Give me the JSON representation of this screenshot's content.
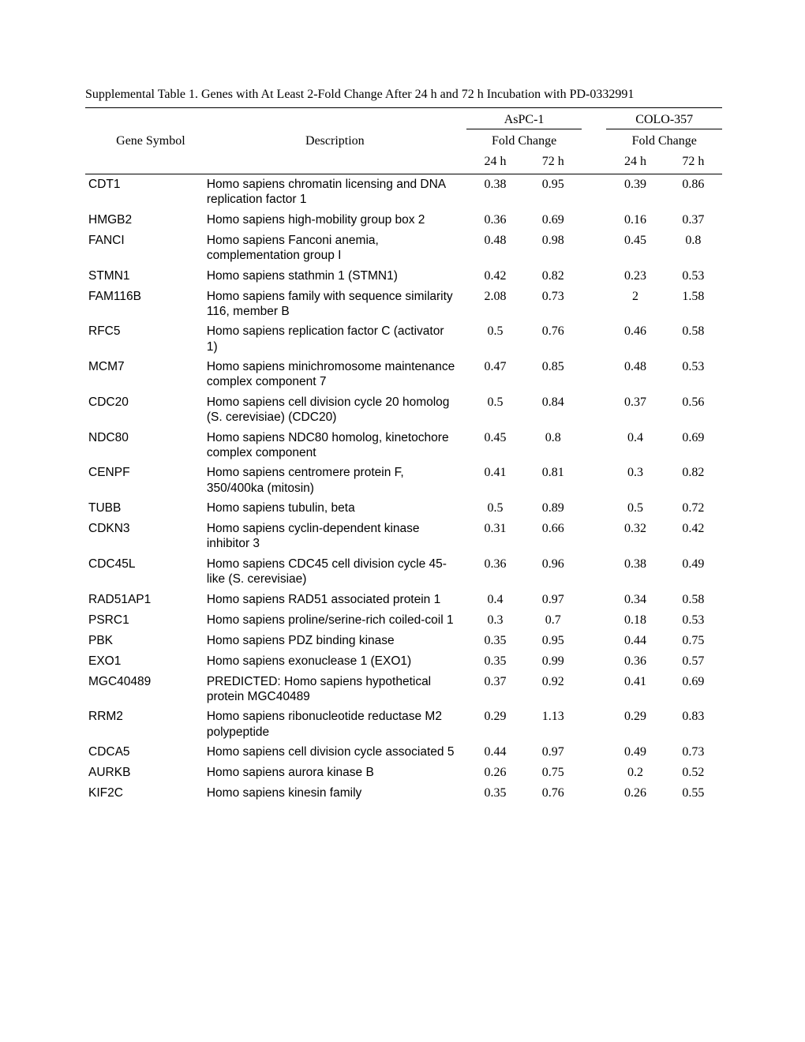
{
  "title": "Supplemental Table 1. Genes with At Least 2-Fold Change After 24 h and 72 h Incubation with PD-0332991",
  "headers": {
    "geneSymbol": "Gene Symbol",
    "description": "Description",
    "group1": "AsPC-1",
    "group2": "COLO-357",
    "foldChange": "Fold Change",
    "t24": "24 h",
    "t72": "72 h"
  },
  "rows": [
    {
      "gene": "CDT1",
      "desc": "Homo sapiens chromatin licensing and DNA replication factor 1",
      "a24": "0.38",
      "a72": "0.95",
      "c24": "0.39",
      "c72": "0.86"
    },
    {
      "gene": "HMGB2",
      "desc": "Homo sapiens high-mobility group box 2",
      "a24": "0.36",
      "a72": "0.69",
      "c24": "0.16",
      "c72": "0.37"
    },
    {
      "gene": "FANCI",
      "desc": "Homo sapiens Fanconi anemia, complementation group I",
      "a24": "0.48",
      "a72": "0.98",
      "c24": "0.45",
      "c72": "0.8"
    },
    {
      "gene": "STMN1",
      "desc": "Homo sapiens stathmin 1 (STMN1)",
      "a24": "0.42",
      "a72": "0.82",
      "c24": "0.23",
      "c72": "0.53"
    },
    {
      "gene": "FAM116B",
      "desc": "Homo sapiens family with sequence similarity 116, member B",
      "a24": "2.08",
      "a72": "0.73",
      "c24": "2",
      "c72": "1.58"
    },
    {
      "gene": "RFC5",
      "desc": "Homo sapiens replication factor C (activator 1)",
      "a24": "0.5",
      "a72": "0.76",
      "c24": "0.46",
      "c72": "0.58"
    },
    {
      "gene": "MCM7",
      "desc": "Homo sapiens minichromosome maintenance complex component 7",
      "a24": "0.47",
      "a72": "0.85",
      "c24": "0.48",
      "c72": "0.53"
    },
    {
      "gene": "CDC20",
      "desc": "Homo sapiens cell division cycle 20 homolog (S. cerevisiae) (CDC20)",
      "a24": "0.5",
      "a72": "0.84",
      "c24": "0.37",
      "c72": "0.56"
    },
    {
      "gene": "NDC80",
      "desc": "Homo sapiens NDC80 homolog, kinetochore complex component",
      "a24": "0.45",
      "a72": "0.8",
      "c24": "0.4",
      "c72": "0.69"
    },
    {
      "gene": "CENPF",
      "desc": "Homo sapiens centromere protein F, 350/400ka (mitosin)",
      "a24": "0.41",
      "a72": "0.81",
      "c24": "0.3",
      "c72": "0.82"
    },
    {
      "gene": "TUBB",
      "desc": "Homo sapiens tubulin, beta",
      "a24": "0.5",
      "a72": "0.89",
      "c24": "0.5",
      "c72": "0.72"
    },
    {
      "gene": "CDKN3",
      "desc": "Homo sapiens cyclin-dependent kinase inhibitor 3",
      "a24": "0.31",
      "a72": "0.66",
      "c24": "0.32",
      "c72": "0.42"
    },
    {
      "gene": "CDC45L",
      "desc": "Homo sapiens CDC45 cell division cycle 45-like (S. cerevisiae)",
      "a24": "0.36",
      "a72": "0.96",
      "c24": "0.38",
      "c72": "0.49"
    },
    {
      "gene": "RAD51AP1",
      "desc": "Homo sapiens RAD51 associated protein 1",
      "a24": "0.4",
      "a72": "0.97",
      "c24": "0.34",
      "c72": "0.58"
    },
    {
      "gene": "PSRC1",
      "desc": "Homo sapiens proline/serine-rich coiled-coil 1",
      "a24": "0.3",
      "a72": "0.7",
      "c24": "0.18",
      "c72": "0.53"
    },
    {
      "gene": "PBK",
      "desc": "Homo sapiens PDZ binding kinase",
      "a24": "0.35",
      "a72": "0.95",
      "c24": "0.44",
      "c72": "0.75"
    },
    {
      "gene": "EXO1",
      "desc": "Homo sapiens exonuclease 1 (EXO1)",
      "a24": "0.35",
      "a72": "0.99",
      "c24": "0.36",
      "c72": "0.57"
    },
    {
      "gene": "MGC40489",
      "desc": "PREDICTED: Homo sapiens hypothetical protein MGC40489",
      "a24": "0.37",
      "a72": "0.92",
      "c24": "0.41",
      "c72": "0.69"
    },
    {
      "gene": "RRM2",
      "desc": "Homo sapiens ribonucleotide reductase M2 polypeptide",
      "a24": "0.29",
      "a72": "1.13",
      "c24": "0.29",
      "c72": "0.83"
    },
    {
      "gene": "CDCA5",
      "desc": "Homo sapiens cell division cycle associated 5",
      "a24": "0.44",
      "a72": "0.97",
      "c24": "0.49",
      "c72": "0.73"
    },
    {
      "gene": "AURKB",
      "desc": "Homo sapiens aurora kinase B",
      "a24": "0.26",
      "a72": "0.75",
      "c24": "0.2",
      "c72": "0.52"
    },
    {
      "gene": "KIF2C",
      "desc": "Homo sapiens kinesin family",
      "a24": "0.35",
      "a72": "0.76",
      "c24": "0.26",
      "c72": "0.55"
    }
  ],
  "style": {
    "font_body": "Times New Roman",
    "font_data": "Arial",
    "fontsize_body": 16,
    "fontsize_data": 15.5,
    "background": "#ffffff",
    "text_color": "#000000",
    "border_color": "#000000"
  }
}
